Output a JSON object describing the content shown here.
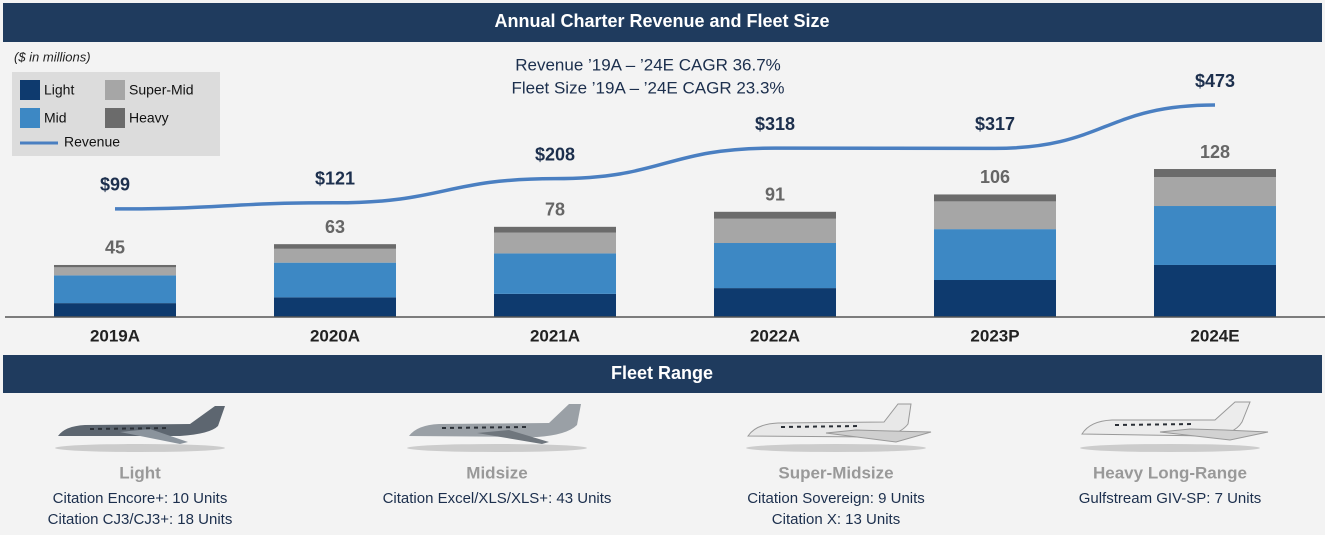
{
  "chart_data": {
    "type": "bar",
    "stacked": true,
    "title": "Annual Charter Revenue and Fleet Size",
    "y2_label": "($ in millions)",
    "annotations": [
      "Revenue ’19A – ’24E CAGR 36.7%",
      "Fleet Size ’19A – ’24E CAGR 23.3%"
    ],
    "categories": [
      "2019A",
      "2020A",
      "2021A",
      "2022A",
      "2023P",
      "2024E"
    ],
    "series": [
      {
        "name": "Light",
        "color": "#0e3a6e",
        "values": [
          12,
          17,
          20,
          25,
          32,
          45
        ]
      },
      {
        "name": "Mid",
        "color": "#3d88c4",
        "values": [
          24,
          30,
          35,
          39,
          44,
          51
        ]
      },
      {
        "name": "Super-Mid",
        "color": "#a6a6a6",
        "values": [
          7,
          12,
          18,
          21,
          24,
          25
        ]
      },
      {
        "name": "Heavy",
        "color": "#6b6b6b",
        "values": [
          2,
          4,
          5,
          6,
          6,
          7
        ]
      },
      {
        "name": "Revenue",
        "type": "line",
        "axis": "y2",
        "color": "#4a7fc1",
        "values": [
          99,
          121,
          208,
          318,
          317,
          473
        ],
        "value_labels": [
          "$99",
          "$121",
          "$208",
          "$318",
          "$317",
          "$473"
        ]
      }
    ],
    "totals": [
      45,
      63,
      78,
      91,
      106,
      128
    ],
    "ylim": [
      0,
      205
    ],
    "y2lim": [
      -290,
      563
    ],
    "legend": "top-left"
  },
  "fleet_range": {
    "title": "Fleet Range",
    "items": [
      {
        "name": "Light",
        "lines": [
          "Citation Encore+: 10 Units",
          "Citation CJ3/CJ3+: 18 Units"
        ]
      },
      {
        "name": "Midsize",
        "lines": [
          "Citation Excel/XLS/XLS+: 43 Units"
        ]
      },
      {
        "name": "Super-Midsize",
        "lines": [
          "Citation Sovereign: 9 Units",
          "Citation X: 13 Units"
        ]
      },
      {
        "name": "Heavy Long-Range",
        "lines": [
          "Gulfstream GIV-SP: 7 Units"
        ]
      }
    ]
  }
}
